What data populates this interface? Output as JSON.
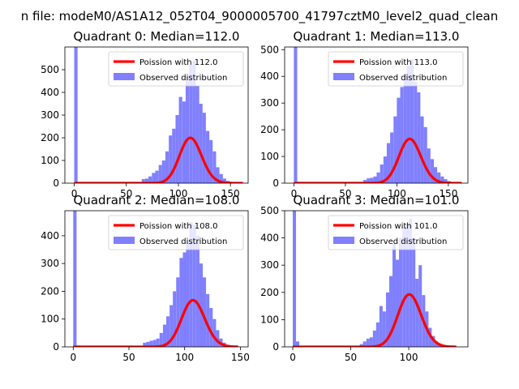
{
  "figure_title": "n file: modeM0/AS1A12_052T04_9000005700_41797cztM0_level2_quad_clean",
  "colors": {
    "poisson": "#ff0000",
    "observed": "#8080ff"
  },
  "chart_data": [
    {
      "type": "bar",
      "title": "Quadrant 0: Median=112.0",
      "xlim": [
        -9,
        167
      ],
      "ylim": [
        0,
        600
      ],
      "xticks": [
        0,
        50,
        100,
        150
      ],
      "yticks": [
        0,
        100,
        200,
        300,
        400,
        500
      ],
      "legend": {
        "position": "top-right",
        "entries": [
          "Poission with 112.0",
          "Observed distribution"
        ]
      },
      "poisson_mean": 112.0,
      "poisson_range": [
        0,
        162
      ],
      "bin_width": 3.24,
      "observed_bins": [
        {
          "x": 1.6,
          "y": 600
        },
        {
          "x": 4.9,
          "y": 5
        },
        {
          "x": 66.4,
          "y": 18
        },
        {
          "x": 69.7,
          "y": 20
        },
        {
          "x": 72.9,
          "y": 30
        },
        {
          "x": 76.2,
          "y": 45
        },
        {
          "x": 79.4,
          "y": 55
        },
        {
          "x": 82.7,
          "y": 80
        },
        {
          "x": 85.9,
          "y": 100
        },
        {
          "x": 89.1,
          "y": 140
        },
        {
          "x": 92.4,
          "y": 210
        },
        {
          "x": 95.6,
          "y": 240
        },
        {
          "x": 98.9,
          "y": 300
        },
        {
          "x": 102.1,
          "y": 380
        },
        {
          "x": 105.4,
          "y": 360
        },
        {
          "x": 108.6,
          "y": 470
        },
        {
          "x": 111.9,
          "y": 520
        },
        {
          "x": 115.1,
          "y": 540
        },
        {
          "x": 118.4,
          "y": 430
        },
        {
          "x": 121.6,
          "y": 350
        },
        {
          "x": 124.8,
          "y": 310
        },
        {
          "x": 128.1,
          "y": 230
        },
        {
          "x": 131.3,
          "y": 190
        },
        {
          "x": 134.6,
          "y": 140
        },
        {
          "x": 137.8,
          "y": 70
        },
        {
          "x": 141.1,
          "y": 40
        },
        {
          "x": 144.3,
          "y": 20
        },
        {
          "x": 147.6,
          "y": 10
        }
      ]
    },
    {
      "type": "bar",
      "title": "Quadrant 1: Median=113.0",
      "xlim": [
        -9,
        169
      ],
      "ylim": [
        0,
        510
      ],
      "xticks": [
        0,
        50,
        100,
        150
      ],
      "yticks": [
        0,
        100,
        200,
        300,
        400,
        500
      ],
      "legend": {
        "position": "top-right",
        "entries": [
          "Poission with 113.0",
          "Observed distribution"
        ]
      },
      "poisson_mean": 113.0,
      "poisson_range": [
        0,
        163
      ],
      "bin_width": 3.27,
      "observed_bins": [
        {
          "x": 1.6,
          "y": 510
        },
        {
          "x": 4.9,
          "y": 5
        },
        {
          "x": 69.0,
          "y": 12
        },
        {
          "x": 72.3,
          "y": 18
        },
        {
          "x": 75.5,
          "y": 20
        },
        {
          "x": 78.8,
          "y": 25
        },
        {
          "x": 82.0,
          "y": 40
        },
        {
          "x": 85.3,
          "y": 70
        },
        {
          "x": 88.6,
          "y": 100
        },
        {
          "x": 91.8,
          "y": 150
        },
        {
          "x": 95.1,
          "y": 190
        },
        {
          "x": 98.4,
          "y": 250
        },
        {
          "x": 101.6,
          "y": 320
        },
        {
          "x": 104.9,
          "y": 360
        },
        {
          "x": 108.2,
          "y": 410
        },
        {
          "x": 111.4,
          "y": 440
        },
        {
          "x": 114.7,
          "y": 465
        },
        {
          "x": 118.0,
          "y": 380
        },
        {
          "x": 121.2,
          "y": 340
        },
        {
          "x": 124.5,
          "y": 250
        },
        {
          "x": 127.8,
          "y": 210
        },
        {
          "x": 131.0,
          "y": 130
        },
        {
          "x": 134.3,
          "y": 90
        },
        {
          "x": 137.5,
          "y": 60
        },
        {
          "x": 140.8,
          "y": 40
        },
        {
          "x": 144.1,
          "y": 25
        },
        {
          "x": 147.3,
          "y": 15
        },
        {
          "x": 150.6,
          "y": 8
        }
      ]
    },
    {
      "type": "bar",
      "title": "Quadrant 2: Median=108.0",
      "xlim": [
        -7.5,
        157
      ],
      "ylim": [
        0,
        490
      ],
      "xticks": [
        0,
        50,
        100,
        150
      ],
      "yticks": [
        0,
        100,
        200,
        300,
        400
      ],
      "legend": {
        "position": "top-right",
        "entries": [
          "Poission with 108.0",
          "Observed distribution"
        ]
      },
      "poisson_mean": 108.0,
      "poisson_range": [
        0,
        148
      ],
      "bin_width": 2.98,
      "observed_bins": [
        {
          "x": 1.5,
          "y": 490
        },
        {
          "x": 4.5,
          "y": 5
        },
        {
          "x": 64.1,
          "y": 15
        },
        {
          "x": 67.1,
          "y": 18
        },
        {
          "x": 70.1,
          "y": 22
        },
        {
          "x": 73.1,
          "y": 25
        },
        {
          "x": 76.0,
          "y": 30
        },
        {
          "x": 79.0,
          "y": 50
        },
        {
          "x": 82.0,
          "y": 80
        },
        {
          "x": 85.0,
          "y": 110
        },
        {
          "x": 88.0,
          "y": 150
        },
        {
          "x": 90.9,
          "y": 200
        },
        {
          "x": 93.9,
          "y": 250
        },
        {
          "x": 96.9,
          "y": 320
        },
        {
          "x": 99.9,
          "y": 340
        },
        {
          "x": 102.8,
          "y": 380
        },
        {
          "x": 105.8,
          "y": 450
        },
        {
          "x": 108.8,
          "y": 440
        },
        {
          "x": 111.8,
          "y": 400
        },
        {
          "x": 114.8,
          "y": 300
        },
        {
          "x": 117.7,
          "y": 250
        },
        {
          "x": 120.7,
          "y": 190
        },
        {
          "x": 123.7,
          "y": 140
        },
        {
          "x": 126.7,
          "y": 100
        },
        {
          "x": 129.6,
          "y": 60
        },
        {
          "x": 132.6,
          "y": 30
        },
        {
          "x": 135.6,
          "y": 15
        },
        {
          "x": 138.6,
          "y": 8
        }
      ]
    },
    {
      "type": "bar",
      "title": "Quadrant 3: Median=101.0",
      "xlim": [
        -7,
        151
      ],
      "ylim": [
        0,
        500
      ],
      "xticks": [
        0,
        50,
        100
      ],
      "yticks": [
        0,
        100,
        200,
        300,
        400,
        500
      ],
      "legend": {
        "position": "top-right",
        "entries": [
          "Poission with 101.0",
          "Observed distribution"
        ]
      },
      "poisson_mean": 101.0,
      "poisson_range": [
        0,
        141
      ],
      "bin_width": 2.82,
      "observed_bins": [
        {
          "x": 1.4,
          "y": 500
        },
        {
          "x": 4.2,
          "y": 20
        },
        {
          "x": 59.2,
          "y": 10
        },
        {
          "x": 62.0,
          "y": 20
        },
        {
          "x": 64.9,
          "y": 30
        },
        {
          "x": 67.7,
          "y": 35
        },
        {
          "x": 70.5,
          "y": 60
        },
        {
          "x": 73.3,
          "y": 90
        },
        {
          "x": 76.1,
          "y": 150
        },
        {
          "x": 78.9,
          "y": 130
        },
        {
          "x": 81.8,
          "y": 200
        },
        {
          "x": 84.6,
          "y": 260
        },
        {
          "x": 87.4,
          "y": 380
        },
        {
          "x": 90.2,
          "y": 320
        },
        {
          "x": 93.0,
          "y": 400
        },
        {
          "x": 95.9,
          "y": 440
        },
        {
          "x": 98.7,
          "y": 450
        },
        {
          "x": 101.5,
          "y": 470
        },
        {
          "x": 104.3,
          "y": 400
        },
        {
          "x": 107.1,
          "y": 250
        },
        {
          "x": 109.9,
          "y": 300
        },
        {
          "x": 112.8,
          "y": 190
        },
        {
          "x": 115.6,
          "y": 130
        },
        {
          "x": 118.4,
          "y": 70
        },
        {
          "x": 121.2,
          "y": 40
        },
        {
          "x": 124.0,
          "y": 20
        },
        {
          "x": 126.9,
          "y": 10
        }
      ]
    }
  ]
}
